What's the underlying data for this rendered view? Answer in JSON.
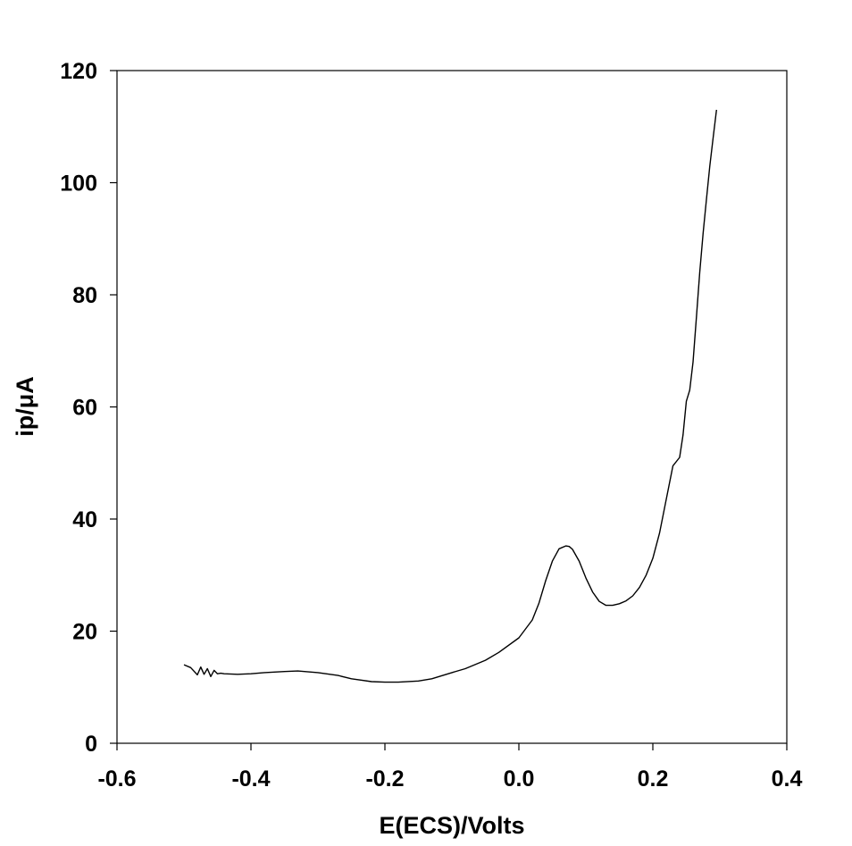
{
  "chart_data": {
    "type": "line",
    "title": "",
    "xlabel": "E(ECS)/Volts",
    "ylabel": "ip/μA",
    "xlim": [
      -0.6,
      0.4
    ],
    "ylim": [
      0,
      120
    ],
    "xticks": [
      -0.6,
      -0.4,
      -0.2,
      0.0,
      0.2,
      0.4
    ],
    "xtick_labels": [
      "-0.6",
      "-0.4",
      "-0.2",
      "0.0",
      "0.2",
      "0.4"
    ],
    "yticks": [
      0,
      20,
      40,
      60,
      80,
      100,
      120
    ],
    "ytick_labels": [
      "0",
      "20",
      "40",
      "60",
      "80",
      "100",
      "120"
    ],
    "grid": false,
    "legend": "none",
    "series": [
      {
        "color": "#000000",
        "x": [
          -0.5,
          -0.49,
          -0.48,
          -0.475,
          -0.47,
          -0.465,
          -0.46,
          -0.455,
          -0.45,
          -0.445,
          -0.44,
          -0.42,
          -0.4,
          -0.38,
          -0.35,
          -0.33,
          -0.3,
          -0.27,
          -0.25,
          -0.22,
          -0.2,
          -0.18,
          -0.15,
          -0.13,
          -0.1,
          -0.08,
          -0.05,
          -0.03,
          0.0,
          0.02,
          0.03,
          0.04,
          0.05,
          0.06,
          0.07,
          0.075,
          0.08,
          0.09,
          0.1,
          0.11,
          0.12,
          0.13,
          0.14,
          0.15,
          0.16,
          0.17,
          0.18,
          0.19,
          0.2,
          0.21,
          0.22,
          0.23,
          0.24,
          0.245,
          0.25,
          0.255,
          0.26,
          0.265,
          0.27,
          0.275,
          0.28,
          0.285,
          0.29,
          0.295
        ],
        "y": [
          14.0,
          13.5,
          12.2,
          13.6,
          12.3,
          13.3,
          11.9,
          13.0,
          12.4,
          12.5,
          12.4,
          12.3,
          12.4,
          12.6,
          12.8,
          12.9,
          12.6,
          12.1,
          11.5,
          11.0,
          10.9,
          10.9,
          11.1,
          11.5,
          12.6,
          13.3,
          14.8,
          16.2,
          18.8,
          22.0,
          25.0,
          29.0,
          32.5,
          34.7,
          35.2,
          35.1,
          34.6,
          32.5,
          29.5,
          27.0,
          25.3,
          24.6,
          24.6,
          24.9,
          25.4,
          26.3,
          27.8,
          30.0,
          33.0,
          37.5,
          43.5,
          49.5,
          51.0,
          55.0,
          61.0,
          63.0,
          68.0,
          76.0,
          84.0,
          91.0,
          97.0,
          103.0,
          108.0,
          113.0
        ]
      }
    ]
  }
}
